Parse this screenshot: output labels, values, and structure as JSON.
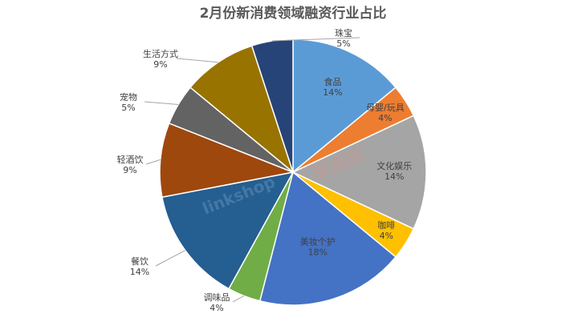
{
  "chart_data": {
    "type": "pie",
    "title": "2月份新消费领域融资行业占比",
    "slices": [
      {
        "name": "食品",
        "value": 14,
        "label": "14%",
        "color": "#5b9bd5"
      },
      {
        "name": "母婴/玩具",
        "value": 4,
        "label": "4%",
        "color": "#ed7d31"
      },
      {
        "name": "文化娱乐",
        "value": 14,
        "label": "14%",
        "color": "#a5a5a5"
      },
      {
        "name": "咖啡",
        "value": 4,
        "label": "4%",
        "color": "#ffc000"
      },
      {
        "name": "美妆个护",
        "value": 18,
        "label": "18%",
        "color": "#4472c4"
      },
      {
        "name": "调味品",
        "value": 4,
        "label": "4%",
        "color": "#70ad47"
      },
      {
        "name": "餐饮",
        "value": 14,
        "label": "14%",
        "color": "#255e91"
      },
      {
        "name": "轻酒饮",
        "value": 9,
        "label": "9%",
        "color": "#9e480e"
      },
      {
        "name": "宠物",
        "value": 5,
        "label": "5%",
        "color": "#636363"
      },
      {
        "name": "生活方式",
        "value": 9,
        "label": "9%",
        "color": "#997300"
      },
      {
        "name": "珠宝",
        "value": 5,
        "label": "5%",
        "color": "#264478"
      }
    ],
    "legend": "none"
  },
  "watermark": {
    "text_left": "linkshop",
    "text_right": "联商网"
  }
}
